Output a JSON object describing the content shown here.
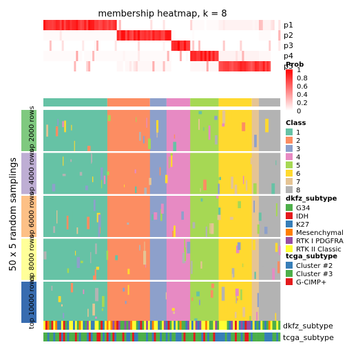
{
  "chart_data": {
    "type": "heatmap",
    "title": "membership heatmap, k = 8",
    "ylabel": "50 x 5 random samplings",
    "prob_rows": [
      "p1",
      "p2",
      "p3",
      "p4",
      "p5"
    ],
    "col_segments": [
      {
        "class": 2,
        "width": 0.31,
        "p": [
          0.95,
          0.02,
          0.0,
          0.02,
          0.0
        ]
      },
      {
        "class": 3,
        "width": 0.23,
        "p": [
          0.0,
          0.95,
          0.0,
          0.02,
          0.03
        ]
      },
      {
        "class": 4,
        "width": 0.08,
        "p": [
          0.0,
          0.0,
          1.0,
          0.0,
          0.0
        ]
      },
      {
        "class": 5,
        "width": 0.12,
        "p": [
          0.02,
          0.0,
          0.0,
          0.95,
          0.03
        ]
      },
      {
        "class": 6,
        "width": 0.17,
        "p": [
          0.05,
          0.0,
          0.0,
          0.05,
          0.9
        ]
      },
      {
        "class": 7,
        "width": 0.05,
        "p": [
          0.05,
          0.02,
          0.0,
          0.03,
          0.9
        ]
      },
      {
        "class": 8,
        "width": 0.04,
        "p": [
          0.0,
          0.0,
          0.0,
          0.0,
          0.0
        ]
      }
    ],
    "class_blocks": [
      {
        "class": 1,
        "width": 0.27
      },
      {
        "class": 2,
        "width": 0.18
      },
      {
        "class": 3,
        "width": 0.07
      },
      {
        "class": 4,
        "width": 0.1
      },
      {
        "class": 5,
        "width": 0.12
      },
      {
        "class": 6,
        "width": 0.14
      },
      {
        "class": 7,
        "width": 0.03
      },
      {
        "class": 8,
        "width": 0.09
      }
    ],
    "row_groups": [
      "top 2000 rows",
      "top 4000 rows",
      "top 6000 rows",
      "top 8000 rows",
      "top 10000 rows"
    ],
    "row_group_colors": [
      "#7FC97F",
      "#BEAED4",
      "#FDC086",
      "#FFFF99",
      "#386CB0"
    ],
    "legends": {
      "prob": {
        "title": "Prob",
        "ticks": [
          "1",
          "0.8",
          "0.6",
          "0.4",
          "0.2",
          "0"
        ],
        "colors": [
          "#FF0000",
          "#FFFFFF"
        ]
      },
      "class": {
        "title": "Class",
        "items": [
          {
            "label": "1",
            "color": "#66C2A5"
          },
          {
            "label": "2",
            "color": "#FC8D62"
          },
          {
            "label": "3",
            "color": "#8DA0CB"
          },
          {
            "label": "4",
            "color": "#E78AC3"
          },
          {
            "label": "5",
            "color": "#A6D854"
          },
          {
            "label": "6",
            "color": "#FFD92F"
          },
          {
            "label": "7",
            "color": "#E5C494"
          },
          {
            "label": "8",
            "color": "#B3B3B3"
          }
        ]
      },
      "dkfz_subtype": {
        "title": "dkfz_subtype",
        "items": [
          {
            "label": "G34",
            "color": "#4DAF4A"
          },
          {
            "label": "IDH",
            "color": "#E41A1C"
          },
          {
            "label": "K27",
            "color": "#377EB8"
          },
          {
            "label": "Mesenchymal",
            "color": "#FF7F00"
          },
          {
            "label": "RTK I PDGFRA",
            "color": "#984EA3"
          },
          {
            "label": "RTK II Classic",
            "color": "#FFFF33"
          }
        ]
      },
      "tcga_subtype": {
        "title": "tcga_subtype",
        "items": [
          {
            "label": "Cluster #2",
            "color": "#377EB8"
          },
          {
            "label": "Cluster #3",
            "color": "#4DAF4A"
          },
          {
            "label": "G-CIMP+",
            "color": "#E41A1C"
          }
        ]
      }
    },
    "bottom_annotations": [
      "dkfz_subtype",
      "tcga_subtype"
    ]
  }
}
